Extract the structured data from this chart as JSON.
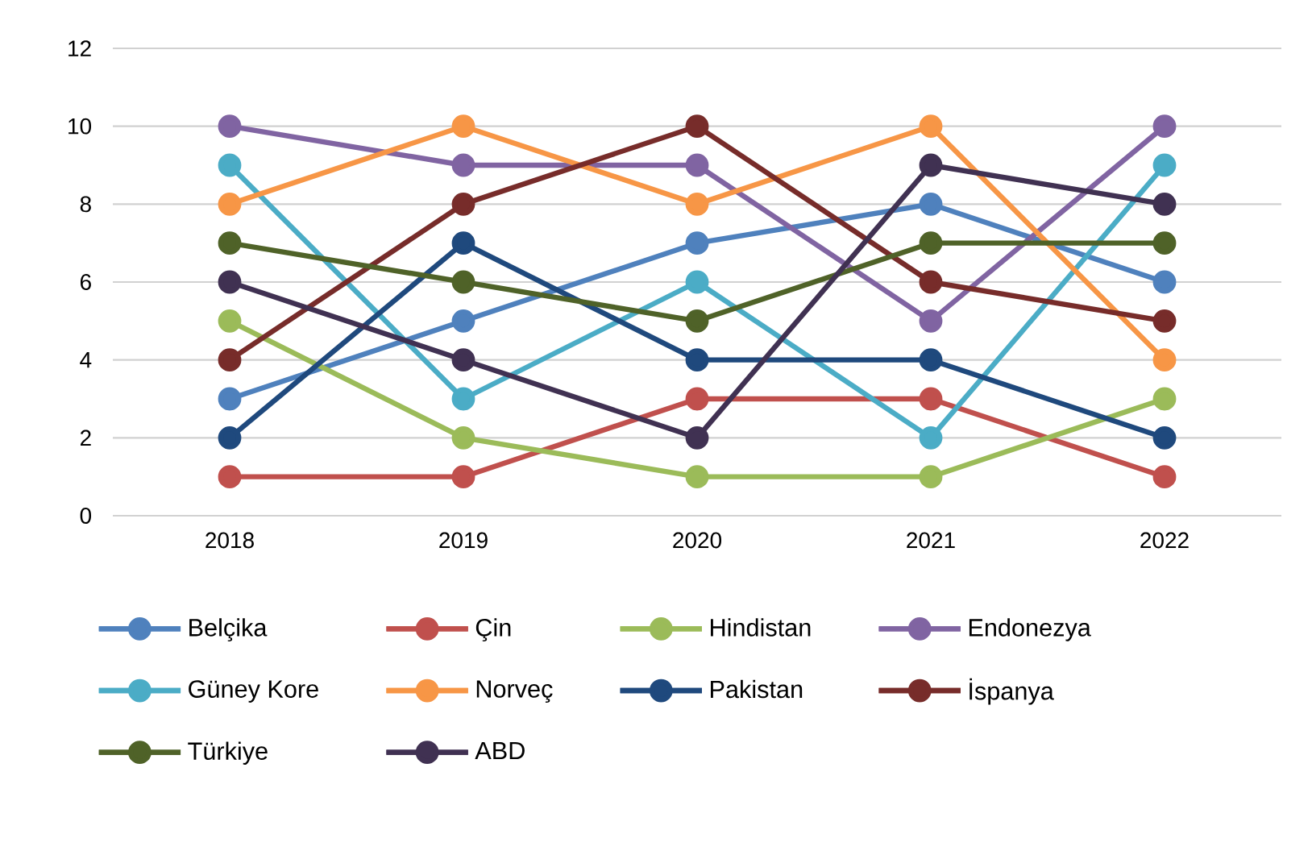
{
  "chart_data": {
    "type": "line",
    "categories": [
      "2018",
      "2019",
      "2020",
      "2021",
      "2022"
    ],
    "ylim": [
      0,
      12
    ],
    "yticks": [
      0,
      2,
      4,
      6,
      8,
      10,
      12
    ],
    "grid": "y",
    "legend": "bottom",
    "marker": "circle",
    "line_style": "solid",
    "series": [
      {
        "name": "Belçika",
        "color": "#4f81bd",
        "values": [
          3,
          5,
          7,
          8,
          6
        ]
      },
      {
        "name": "Çin",
        "color": "#c0504d",
        "values": [
          1,
          1,
          3,
          3,
          1
        ]
      },
      {
        "name": "Hindistan",
        "color": "#9bbb59",
        "values": [
          5,
          2,
          1,
          1,
          3
        ]
      },
      {
        "name": "Endonezya",
        "color": "#8064a2",
        "values": [
          10,
          9,
          9,
          5,
          10
        ]
      },
      {
        "name": "Güney Kore",
        "color": "#4bacc6",
        "values": [
          9,
          3,
          6,
          2,
          9
        ]
      },
      {
        "name": "Norveç",
        "color": "#f79646",
        "values": [
          8,
          10,
          8,
          10,
          4
        ]
      },
      {
        "name": "Pakistan",
        "color": "#1f497d",
        "values": [
          2,
          7,
          4,
          4,
          2
        ]
      },
      {
        "name": "İspanya",
        "color": "#772c2a",
        "values": [
          4,
          8,
          10,
          6,
          5
        ]
      },
      {
        "name": "Türkiye",
        "color": "#4f6228",
        "values": [
          7,
          6,
          5,
          7,
          7
        ]
      },
      {
        "name": "ABD",
        "color": "#403152",
        "values": [
          6,
          4,
          2,
          9,
          8
        ]
      }
    ]
  }
}
